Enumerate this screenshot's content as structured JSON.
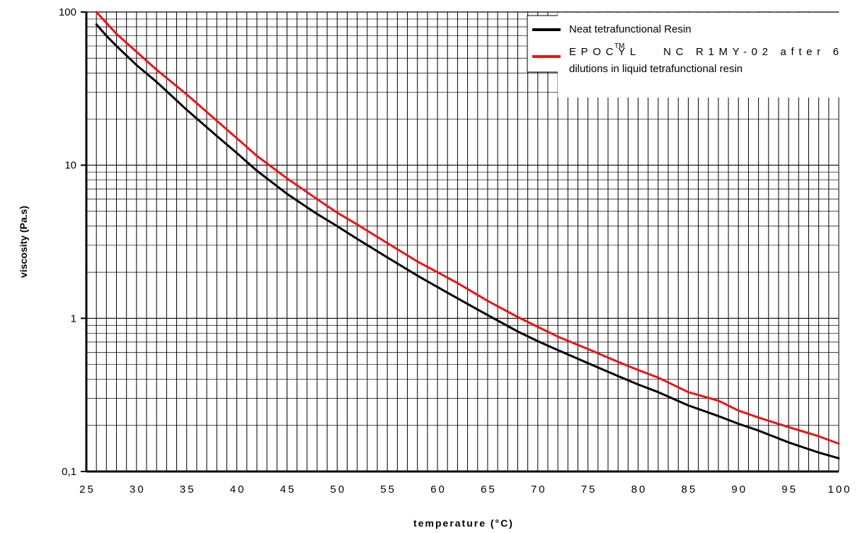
{
  "chart_data": {
    "type": "line",
    "title": "",
    "xlabel": "temperature (°C)",
    "ylabel": "viscosity (Pa.s)",
    "xlim": [
      25,
      100
    ],
    "ylim": [
      0.1,
      100
    ],
    "yscale": "log",
    "grid": true,
    "legend_position": "top-right",
    "x_ticks": [
      "25",
      "30",
      "35",
      "40",
      "45",
      "50",
      "55",
      "60",
      "65",
      "70",
      "75",
      "80",
      "85",
      "90",
      "95",
      "100"
    ],
    "y_ticks": [
      "0,1",
      "1",
      "10",
      "100"
    ],
    "series": [
      {
        "name": "Neat tetrafunctional Resin",
        "color": "#000000",
        "x": [
          26,
          27,
          28,
          30,
          32,
          35,
          38,
          40,
          42,
          45,
          48,
          50,
          52,
          55,
          58,
          60,
          62,
          65,
          68,
          70,
          72,
          75,
          78,
          80,
          82,
          85,
          88,
          90,
          92,
          95,
          98,
          100
        ],
        "y": [
          83,
          70,
          60,
          45,
          35,
          23,
          15.5,
          12,
          9.2,
          6.5,
          4.8,
          4.0,
          3.3,
          2.5,
          1.9,
          1.6,
          1.35,
          1.05,
          0.82,
          0.71,
          0.62,
          0.51,
          0.42,
          0.37,
          0.33,
          0.27,
          0.23,
          0.205,
          0.185,
          0.155,
          0.133,
          0.122
        ]
      },
      {
        "name": "EPOCYL™ NC R1MY-02 after 6 dilutions in liquid tetrafunctional resin",
        "color": "#ee1111",
        "x": [
          26,
          27,
          28,
          30,
          32,
          35,
          38,
          40,
          42,
          45,
          48,
          50,
          52,
          55,
          58,
          60,
          62,
          65,
          68,
          70,
          72,
          75,
          78,
          80,
          82,
          85,
          88,
          90,
          92,
          95,
          98,
          100
        ],
        "y": [
          100,
          85,
          72,
          55,
          42,
          29,
          19.5,
          15,
          11.5,
          8.2,
          6.0,
          4.9,
          4.1,
          3.1,
          2.35,
          2.0,
          1.7,
          1.3,
          1.02,
          0.88,
          0.76,
          0.63,
          0.52,
          0.46,
          0.41,
          0.33,
          0.29,
          0.25,
          0.225,
          0.195,
          0.17,
          0.152
        ]
      }
    ]
  },
  "legend": {
    "entries": [
      {
        "lines": [
          "Neat tetrafunctional Resin"
        ]
      },
      {
        "lines": [
          "EPOCYL™ NC R1MY-02 after 6",
          "dilutions in liquid tetrafunctional resin"
        ]
      }
    ],
    "sup_text": "TM"
  }
}
